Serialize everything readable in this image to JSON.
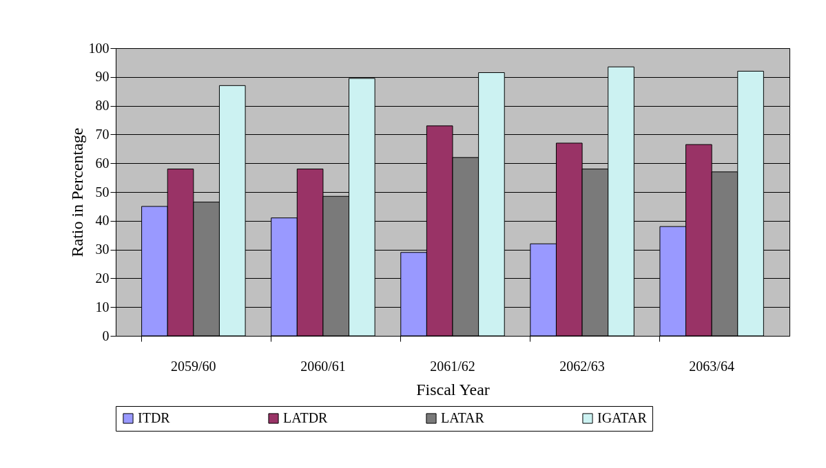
{
  "chart_data": {
    "type": "bar",
    "xlabel": "Fiscal Year",
    "ylabel": "Ratio in Percentage",
    "categories": [
      "2059/60",
      "2060/61",
      "2061/62",
      "2062/63",
      "2063/64"
    ],
    "series": [
      {
        "name": "ITDR",
        "color": "#9999ff",
        "values": [
          45,
          41,
          29,
          32,
          38
        ]
      },
      {
        "name": "LATDR",
        "color": "#993366",
        "values": [
          58,
          58,
          73,
          67,
          66.5
        ]
      },
      {
        "name": "LATAR",
        "color": "#7a7a7a",
        "values": [
          46.5,
          48.5,
          62,
          58,
          57
        ]
      },
      {
        "name": "IGATAR",
        "color": "#ccf2f2",
        "values": [
          87,
          89.5,
          91.5,
          93.5,
          92
        ]
      }
    ],
    "ylim": [
      0,
      100
    ],
    "yticks": [
      0,
      10,
      20,
      30,
      40,
      50,
      60,
      70,
      80,
      90,
      100
    ],
    "grid": "y",
    "legend": "bottom"
  }
}
